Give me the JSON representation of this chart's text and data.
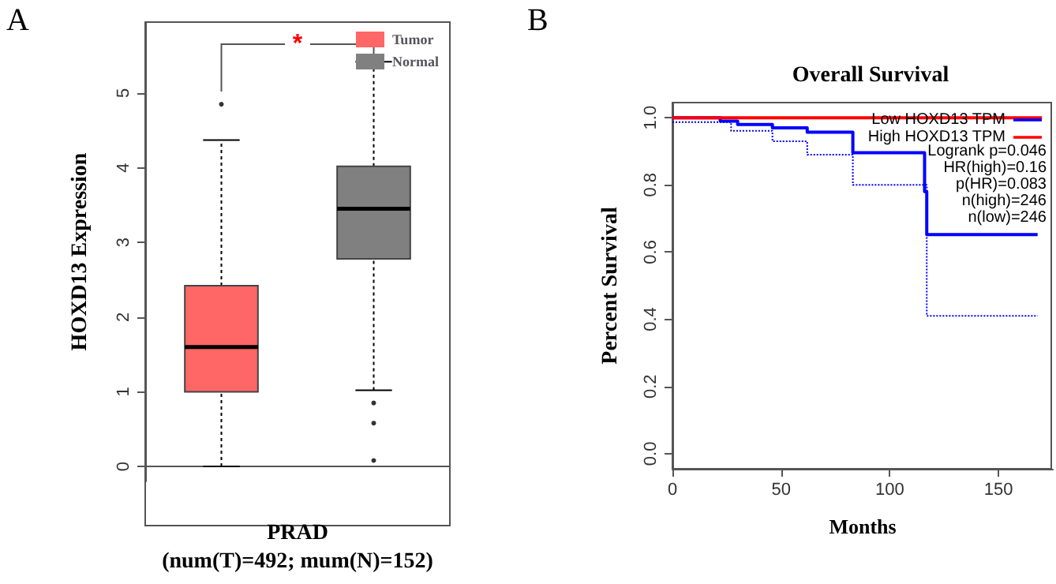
{
  "chart_data": [
    {
      "type": "box",
      "categories": [
        null,
        null
      ],
      "xlabel": "PRAD\n(num(T)=492; mum(N)=152)",
      "ylabel": "HOXD13 Expression",
      "ylim": [
        -0.2,
        5.95
      ],
      "yticks": [
        0,
        1,
        2,
        3,
        4,
        5
      ],
      "legend": "top right",
      "annotations": [
        "A",
        "*"
      ],
      "series": [
        {
          "name": "Tumor",
          "color": "#ff6666",
          "boxes": [
            {
              "low": 0,
              "q1": 1.0,
              "median": 1.6,
              "q3": 2.42,
              "high": 4.37,
              "outliers": [
                4.85
              ]
            },
            null
          ]
        },
        {
          "name": "Normal",
          "color": "#808080",
          "boxes": [
            null,
            {
              "low": 1.02,
              "q1": 2.78,
              "median": 3.45,
              "q3": 4.02,
              "high": 5.42,
              "outliers": [
                0.85,
                0.58,
                0.08
              ]
            }
          ]
        }
      ]
    },
    {
      "type": "step",
      "title": "Overall Survival",
      "xlabel": "Months",
      "ylabel": "Percent Survival",
      "xlim": [
        0,
        175
      ],
      "xticks": [
        0,
        50,
        100,
        150
      ],
      "ylim": [
        -0.045,
        1.045
      ],
      "yticks": [
        {
          "value": 0,
          "label": "0.0"
        },
        {
          "value": 0.2,
          "label": "0.2"
        },
        {
          "value": 0.4,
          "label": "0.4"
        },
        {
          "value": 0.6,
          "label": "0.6"
        },
        {
          "value": 0.8,
          "label": "0.8"
        },
        {
          "value": 1,
          "label": "1.0"
        }
      ],
      "legend": "top right",
      "annotations": [
        "B",
        "Logrank p=0.046",
        "HR(high)=0.16",
        "p(HR)=0.083",
        "n(high)=246",
        "n(low)=246"
      ],
      "series": [
        {
          "name": "Low HOXD13 TPM",
          "color": "#0000ff",
          "x": [
            0,
            22,
            30,
            46,
            62,
            83,
            116,
            117,
            168
          ],
          "values": [
            1,
            0.99,
            0.98,
            0.97,
            0.957,
            0.896,
            0.78,
            0.652,
            0.652
          ]
        },
        {
          "color": "#0000ff",
          "line_style": "dotted",
          "x": [
            0,
            27,
            46,
            62,
            83,
            117,
            168
          ],
          "values": [
            0.987,
            0.961,
            0.93,
            0.89,
            0.8,
            0.41,
            0.41
          ]
        },
        {
          "name": "High HOXD13 TPM",
          "color": "#ff0000",
          "x": [
            0,
            170
          ],
          "values": [
            1,
            1
          ]
        }
      ]
    }
  ]
}
